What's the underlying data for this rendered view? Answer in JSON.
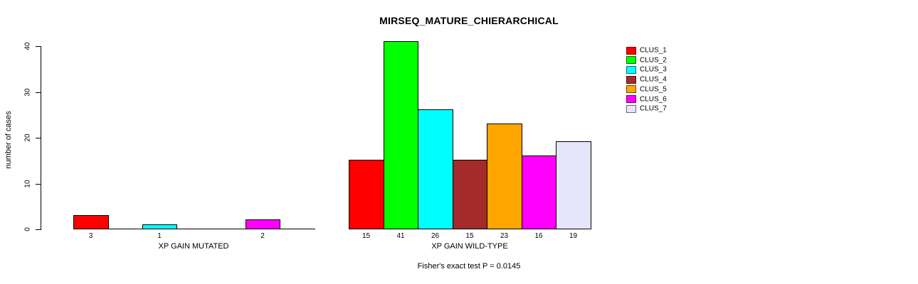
{
  "chart_data": {
    "type": "bar",
    "title": "MIRSEQ_MATURE_CHIERARCHICAL",
    "ylabel": "number of cases",
    "ylim": [
      0,
      40
    ],
    "yticks": [
      0,
      10,
      20,
      30,
      40
    ],
    "grid": false,
    "legend_position": "top-right",
    "categories": [
      "CLUS_1",
      "CLUS_2",
      "CLUS_3",
      "CLUS_4",
      "CLUS_5",
      "CLUS_6",
      "CLUS_7"
    ],
    "colors": [
      "#FF0000",
      "#00FF00",
      "#00FFFF",
      "#A52A2A",
      "#FFA500",
      "#FF00FF",
      "#E6E6FA"
    ],
    "panels": [
      {
        "xlabel": "XP GAIN MUTATED",
        "values": [
          3,
          0,
          1,
          0,
          0,
          2,
          0
        ],
        "bar_labels": [
          "3",
          "",
          "1",
          "",
          "",
          "2",
          ""
        ]
      },
      {
        "xlabel": "XP GAIN WILD-TYPE",
        "values": [
          15,
          41,
          26,
          15,
          23,
          16,
          19
        ],
        "bar_labels": [
          "15",
          "41",
          "26",
          "15",
          "23",
          "16",
          "19"
        ]
      }
    ],
    "annotation": "Fisher's exact test P = 0.0145"
  },
  "legend": {
    "items": [
      {
        "label": "CLUS_1",
        "color": "#FF0000"
      },
      {
        "label": "CLUS_2",
        "color": "#00FF00"
      },
      {
        "label": "CLUS_3",
        "color": "#00FFFF"
      },
      {
        "label": "CLUS_4",
        "color": "#A52A2A"
      },
      {
        "label": "CLUS_5",
        "color": "#FFA500"
      },
      {
        "label": "CLUS_6",
        "color": "#FF00FF"
      },
      {
        "label": "CLUS_7",
        "color": "#E6E6FA"
      }
    ]
  }
}
